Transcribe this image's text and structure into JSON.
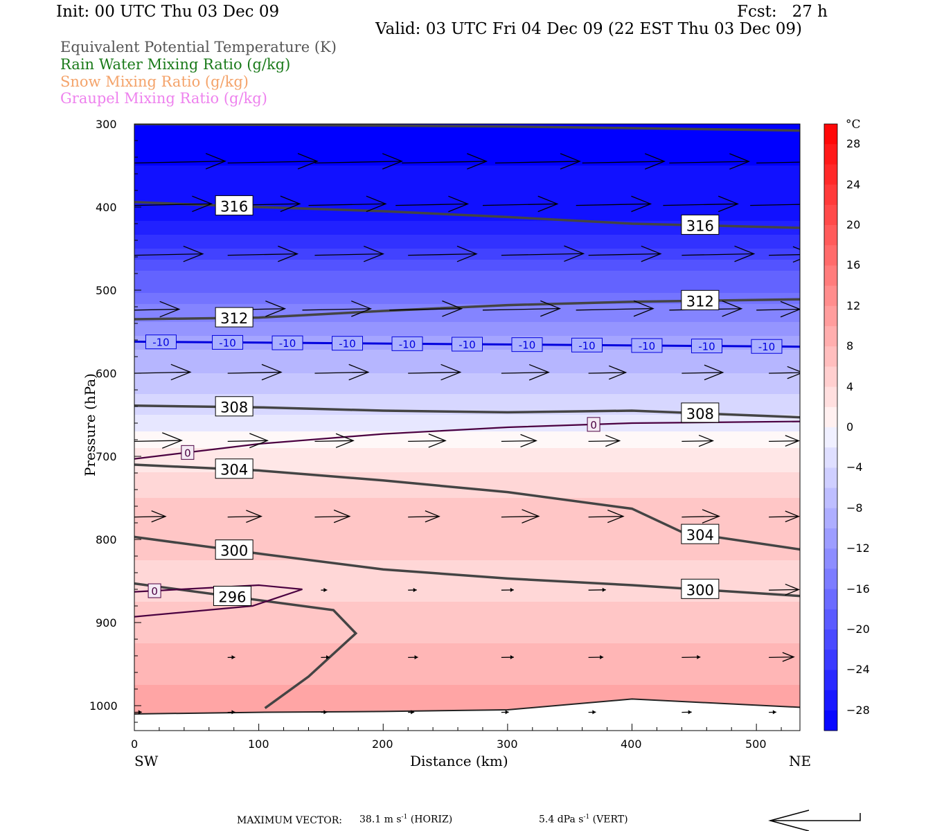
{
  "header": {
    "init": "Init: 00 UTC Thu 03 Dec 09",
    "fcst": "Fcst:   27 h",
    "valid": "Valid: 03 UTC Fri 04 Dec 09 (22 EST Thu 03 Dec 09)"
  },
  "legend": [
    {
      "label": "Equivalent Potential Temperature (K)",
      "color": "#555555"
    },
    {
      "label": "Rain Water Mixing Ratio (g/kg)",
      "color": "#1a7a1a"
    },
    {
      "label": "Snow Mixing Ratio (g/kg)",
      "color": "#f4a36a"
    },
    {
      "label": "Graupel Mixing Ratio (g/kg)",
      "color": "#ee82ee"
    }
  ],
  "axes": {
    "xlabel": "Distance (km)",
    "ylabel": "Pressure (hPa)",
    "x_left": "SW",
    "x_right": "NE",
    "xticks": [
      "0",
      "100",
      "200",
      "300",
      "400",
      "500"
    ],
    "yticks": [
      "300",
      "400",
      "500",
      "600",
      "700",
      "800",
      "900",
      "1000"
    ]
  },
  "colorbar": {
    "unit": "°C",
    "labels": [
      "28",
      "24",
      "20",
      "16",
      "12",
      "8",
      "4",
      "0",
      "−4",
      "−8",
      "−12",
      "−16",
      "−20",
      "−24",
      "−28"
    ]
  },
  "footer": {
    "max_vector": "MAXIMUM VECTOR:",
    "horiz_value": "38.1 m s",
    "horiz_unit": " (HORIZ)",
    "vert_value": "5.4 dPa s",
    "vert_unit": " (VERT)",
    "exp": "-1"
  },
  "chart_data": {
    "type": "contour",
    "xlim": [
      0,
      535
    ],
    "ylim": [
      1030,
      300
    ],
    "grid": false,
    "fill_variable": "temperature (°C)",
    "fill_levels": [
      -30,
      -28,
      -26,
      -24,
      -22,
      -20,
      -18,
      -16,
      -14,
      -12,
      -10,
      -8,
      -6,
      -4,
      -2,
      0,
      2,
      4,
      6,
      8,
      10,
      12,
      14,
      16,
      18,
      20,
      22,
      24,
      26,
      28,
      30
    ],
    "temperature_field": {
      "pressure": [
        300,
        400,
        500,
        560,
        600,
        640,
        660,
        680,
        700,
        750,
        800,
        850,
        900,
        950,
        1000
      ],
      "temp_c": [
        -30,
        -28,
        -17,
        -10,
        -7,
        -4,
        -2,
        0,
        2,
        5,
        6,
        4,
        6,
        8,
        10
      ]
    },
    "theta_e_contours": [
      {
        "label": "316",
        "x": [
          0,
          100,
          200,
          300,
          400,
          535
        ],
        "p": [
          300,
          301,
          302,
          303,
          305,
          308
        ]
      },
      {
        "label": "316",
        "x": [
          0,
          100,
          200,
          300,
          400,
          535
        ],
        "p": [
          394,
          400,
          405,
          412,
          420,
          425
        ]
      },
      {
        "label": "312",
        "x": [
          0,
          100,
          200,
          300,
          400,
          535
        ],
        "p": [
          535,
          533,
          525,
          518,
          514,
          511
        ]
      },
      {
        "label": "308",
        "x": [
          0,
          100,
          200,
          300,
          400,
          535
        ],
        "p": [
          639,
          641,
          645,
          647,
          645,
          653
        ]
      },
      {
        "label": "304",
        "x": [
          0,
          100,
          200,
          300,
          400,
          440,
          535
        ],
        "p": [
          710,
          717,
          729,
          743,
          763,
          791,
          812
        ]
      },
      {
        "label": "300",
        "x": [
          0,
          100,
          200,
          300,
          400,
          535
        ],
        "p": [
          797,
          817,
          836,
          847,
          855,
          868
        ]
      },
      {
        "label": "296",
        "x": [
          0,
          160,
          178,
          140,
          105
        ],
        "p": [
          853,
          885,
          913,
          965,
          1003
        ]
      },
      {
        "label": "",
        "x": [
          0,
          100,
          200,
          300,
          400,
          535
        ],
        "p": [
          1010,
          1008,
          1007,
          1005,
          992,
          1002
        ]
      }
    ],
    "isotherm_contours": [
      {
        "label": "-10",
        "x": [
          0,
          535
        ],
        "p": [
          562,
          568
        ]
      },
      {
        "label": "0",
        "x": [
          0,
          100,
          200,
          300,
          400,
          535
        ],
        "p": [
          703,
          685,
          673,
          665,
          660,
          658
        ]
      },
      {
        "label": "0",
        "x": [
          0,
          100,
          135,
          95,
          0
        ],
        "p": [
          863,
          855,
          860,
          880,
          893
        ]
      }
    ],
    "wind_vectors": [
      {
        "p": 347,
        "x": [
          0,
          75,
          145,
          215,
          290,
          360,
          430,
          500
        ],
        "len_km": [
          73,
          72,
          70,
          68,
          68,
          66,
          64,
          68
        ]
      },
      {
        "p": 398,
        "x": [
          0,
          70,
          140,
          210,
          280,
          355,
          425,
          495
        ],
        "len_km": [
          62,
          63,
          62,
          58,
          60,
          60,
          60,
          60
        ]
      },
      {
        "p": 458,
        "x": [
          0,
          75,
          145,
          220,
          295,
          365,
          440,
          510
        ],
        "len_km": [
          55,
          56,
          55,
          55,
          66,
          58,
          58,
          35
        ]
      },
      {
        "p": 524,
        "x": [
          0,
          65,
          135,
          205,
          280,
          355,
          430,
          500
        ],
        "len_km": [
          36,
          56,
          55,
          58,
          62,
          62,
          58,
          35
        ]
      },
      {
        "p": 600,
        "x": [
          0,
          75,
          145,
          220,
          295,
          365,
          440,
          510
        ],
        "len_km": [
          45,
          43,
          43,
          42,
          38,
          30,
          33,
          27
        ]
      },
      {
        "p": 682,
        "x": [
          0,
          75,
          145,
          220,
          295,
          365,
          440,
          510
        ],
        "len_km": [
          38,
          32,
          31,
          30,
          28,
          25,
          25,
          24
        ]
      },
      {
        "p": 773,
        "x": [
          0,
          75,
          145,
          220,
          295,
          365,
          440,
          510
        ],
        "len_km": [
          25,
          27,
          28,
          25,
          30,
          28,
          30,
          24
        ]
      },
      {
        "p": 861,
        "x": [
          150,
          220,
          295,
          365,
          440,
          510
        ],
        "len_km": [
          5,
          7,
          10,
          14,
          20,
          24
        ]
      },
      {
        "p": 942,
        "x": [
          75,
          150,
          220,
          295,
          365,
          440,
          510
        ],
        "len_km": [
          6,
          7,
          8,
          10,
          12,
          15,
          20
        ]
      },
      {
        "p": 1008,
        "x": [
          0,
          75,
          150,
          220,
          295,
          365,
          440,
          510
        ],
        "len_km": [
          6,
          6,
          5,
          5,
          6,
          6,
          8,
          6
        ]
      }
    ]
  }
}
